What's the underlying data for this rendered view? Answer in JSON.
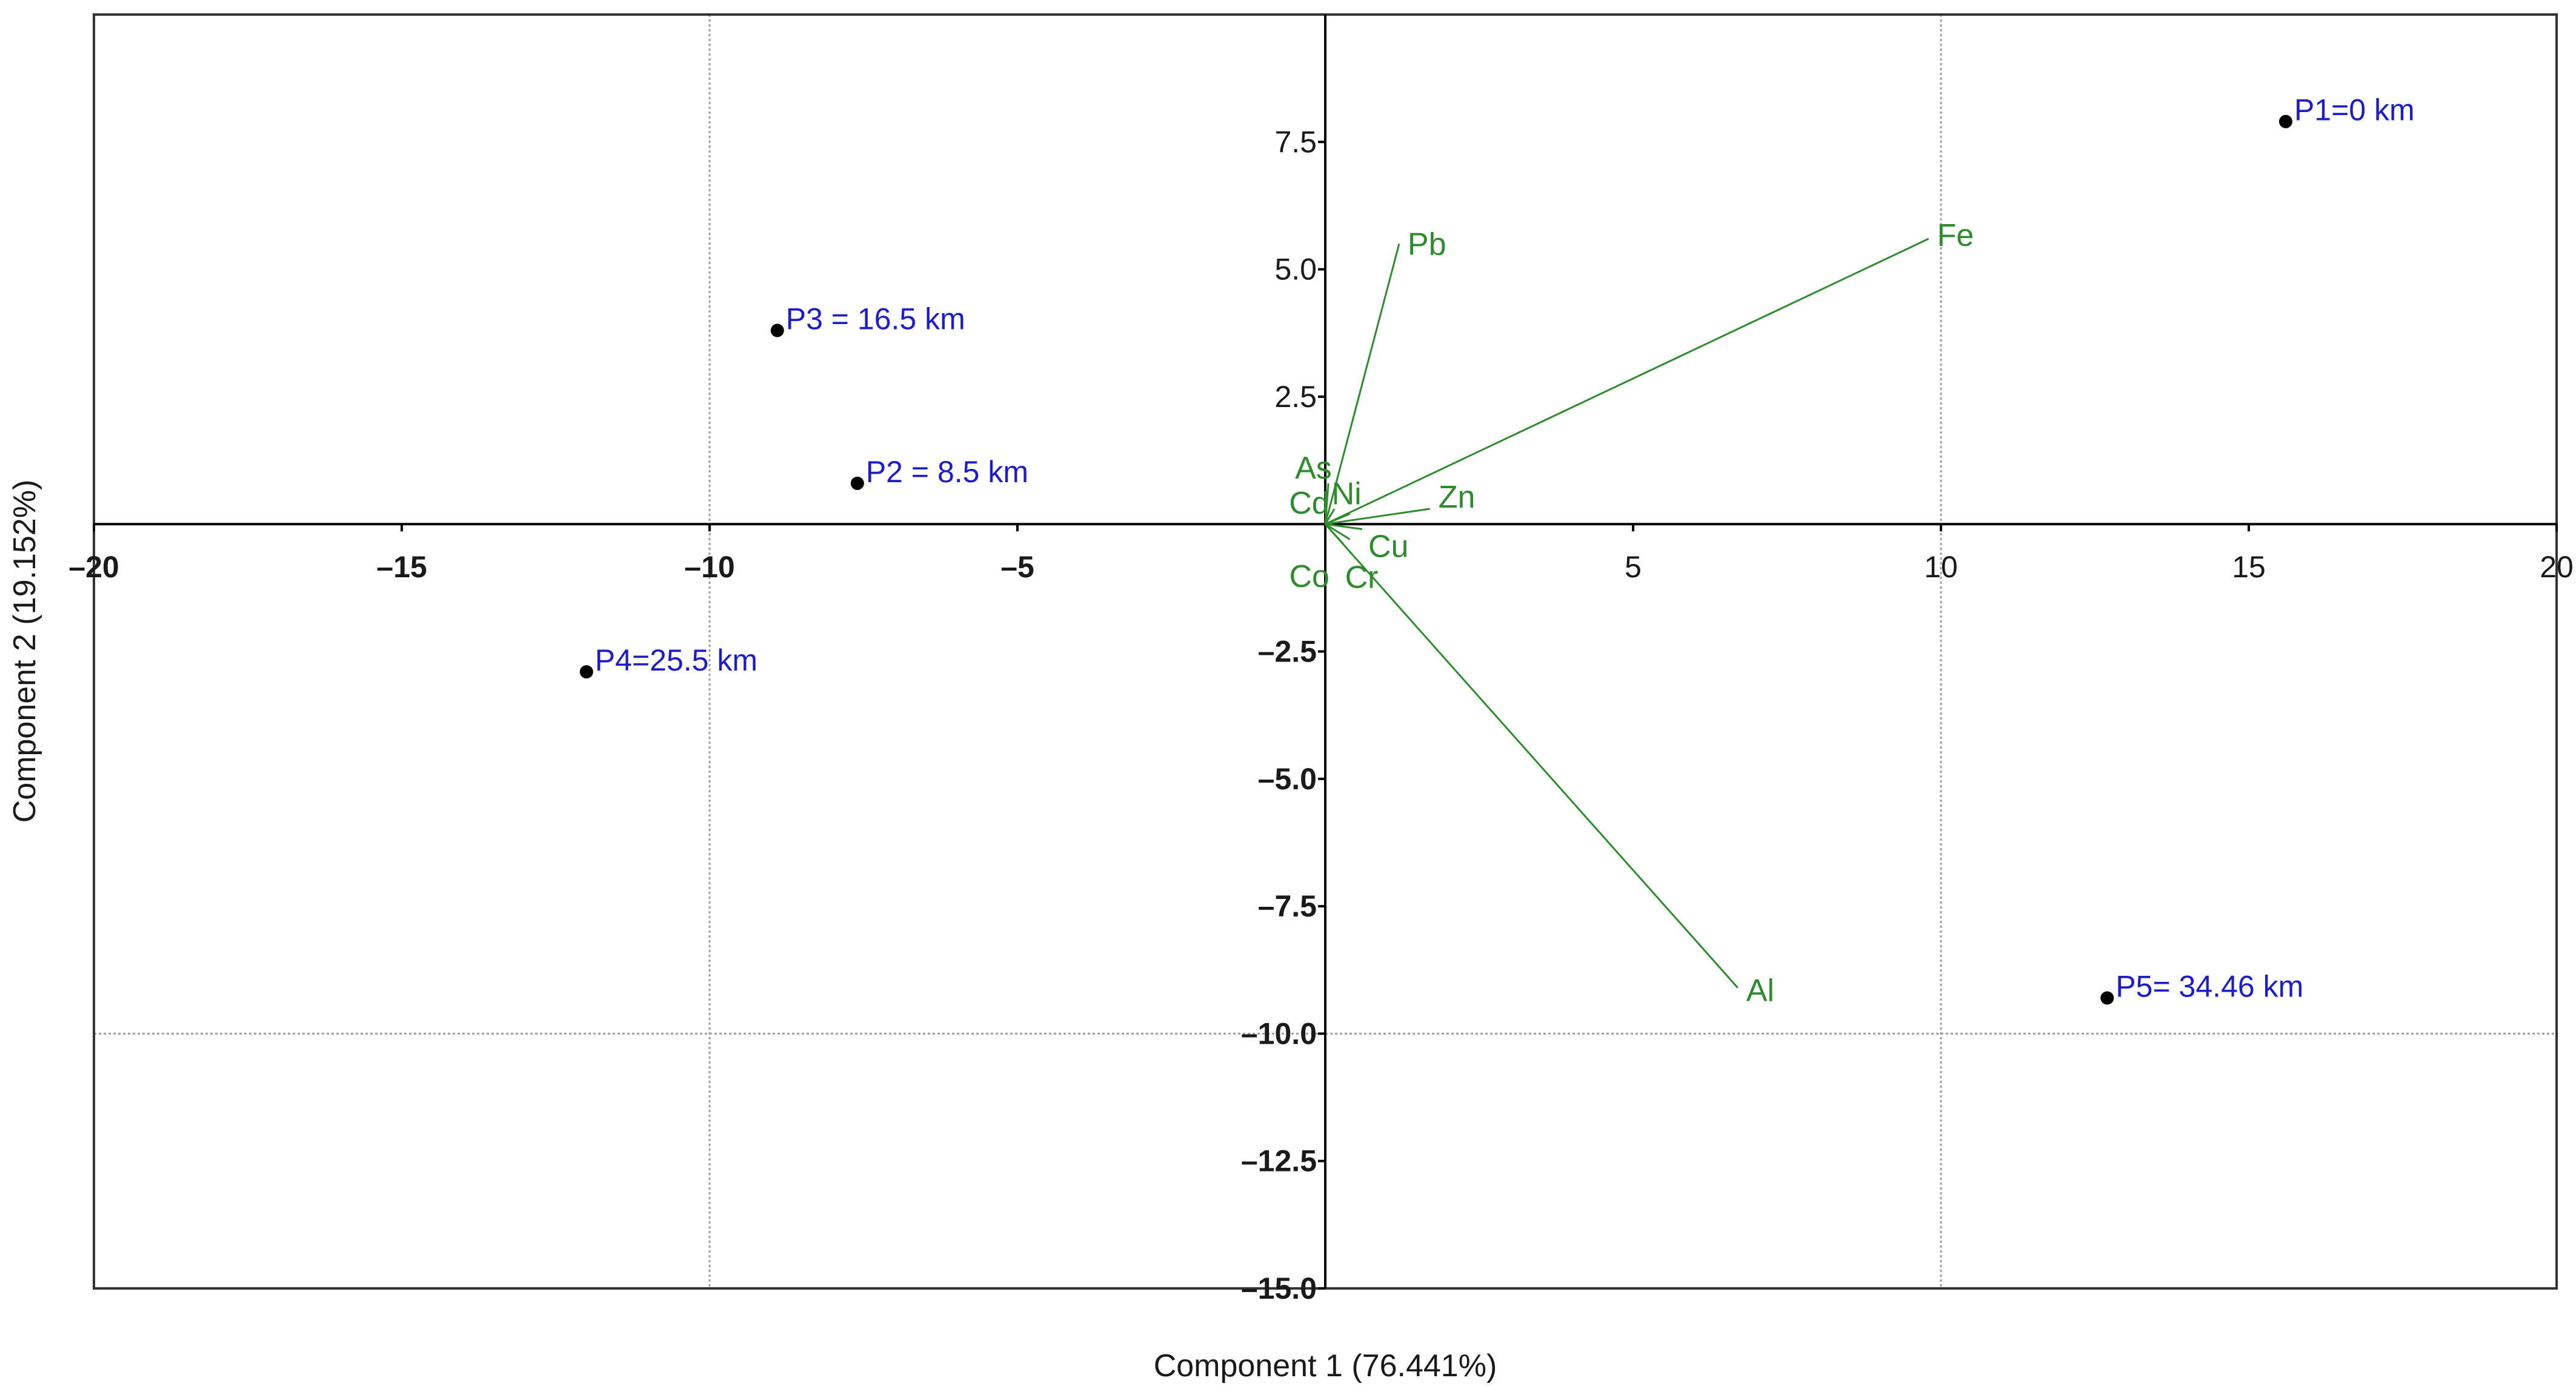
{
  "chart_data": {
    "type": "biplot",
    "xlabel": "Component 1 (76.441%)",
    "ylabel": "Component 2 (19.152%)",
    "xlim": [
      -20,
      20
    ],
    "ylim": [
      -15,
      10
    ],
    "x_ticks": [
      -20,
      -15,
      -10,
      -5,
      5,
      10,
      15,
      20
    ],
    "x_tick_labels": [
      "–20",
      "–15",
      "–10",
      "–5",
      "5",
      "10",
      "15",
      "20"
    ],
    "y_ticks": [
      7.5,
      5.0,
      2.5,
      -2.5,
      -5.0,
      -7.5,
      -10.0,
      -12.5,
      -15.0
    ],
    "y_tick_labels": [
      "7.5",
      "5.0",
      "2.5",
      "–2.5",
      "–5.0",
      "–7.5",
      "–10.0",
      "–12.5",
      "–15.0"
    ],
    "gridlines": {
      "x": [
        -10,
        10
      ],
      "y": [
        -10
      ]
    },
    "colors": {
      "observations": "#1c1cc8",
      "variables": "#2e8b2e",
      "axis": "#000000",
      "grid": "#a0a0a0"
    },
    "observations": [
      {
        "label": "P1=0 km",
        "x": 15.6,
        "y": 7.9
      },
      {
        "label": "P2 = 8.5 km",
        "x": -7.6,
        "y": 0.8
      },
      {
        "label": "P3 = 16.5 km",
        "x": -8.9,
        "y": 3.8
      },
      {
        "label": "P4=25.5 km",
        "x": -12.0,
        "y": -2.9
      },
      {
        "label": "P5= 34.46 km",
        "x": 12.7,
        "y": -9.3
      }
    ],
    "variables": [
      {
        "label": "Fe",
        "x": 9.8,
        "y": 5.6
      },
      {
        "label": "Pb",
        "x": 1.2,
        "y": 5.5
      },
      {
        "label": "Al",
        "x": 6.7,
        "y": -9.1
      },
      {
        "label": "Zn",
        "x": 1.7,
        "y": 0.3
      },
      {
        "label": "Ni",
        "x": 0.4,
        "y": 0.2
      },
      {
        "label": "As",
        "x": 0.05,
        "y": 0.8
      },
      {
        "label": "Cd",
        "x": 0.15,
        "y": 0.3
      },
      {
        "label": "Cu",
        "x": 0.6,
        "y": -0.1
      },
      {
        "label": "Cr",
        "x": 0.4,
        "y": -0.3
      },
      {
        "label": "Co",
        "x": 0.3,
        "y": -0.4
      }
    ]
  }
}
